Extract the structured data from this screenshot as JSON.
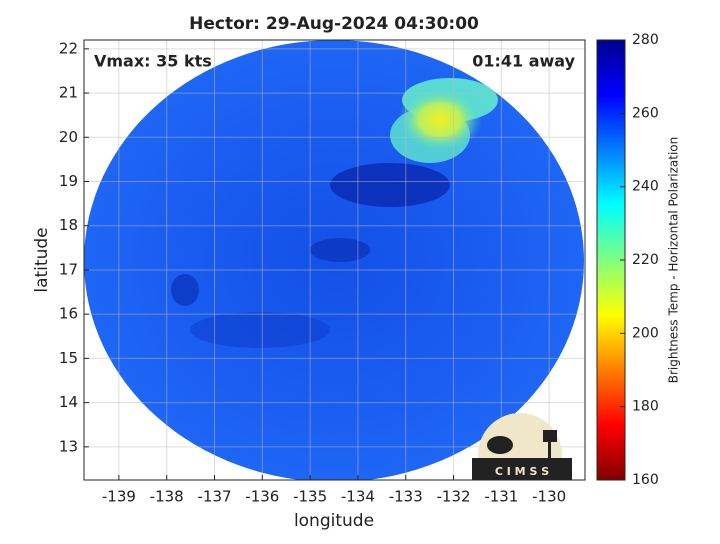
{
  "chart_data": {
    "type": "image",
    "title": "Hector: 29-Aug-2024 04:30:00",
    "annotations": [
      "Vmax: 35 kts",
      "01:41 away"
    ],
    "xlabel": "longitude",
    "ylabel": "latitude",
    "xlim": [
      -139.73,
      -129.25
    ],
    "ylim": [
      12.25,
      22.2
    ],
    "xticks": [
      -139,
      -138,
      -137,
      -136,
      -135,
      -134,
      -133,
      -132,
      -131,
      -130
    ],
    "yticks": [
      13,
      14,
      15,
      16,
      17,
      18,
      19,
      20,
      21,
      22
    ],
    "grid": true,
    "colorbar": {
      "label": "Brightness Temp - Horizontal Polarization",
      "lim": [
        160,
        280
      ],
      "ticks": [
        160,
        180,
        200,
        220,
        240,
        260,
        280
      ],
      "colormap": [
        "#800000",
        "#ff0000",
        "#ff7f00",
        "#ffff00",
        "#7fff7f",
        "#00ffff",
        "#007fff",
        "#0000ff",
        "#00008f"
      ]
    },
    "logo_text": "C I M S S"
  }
}
